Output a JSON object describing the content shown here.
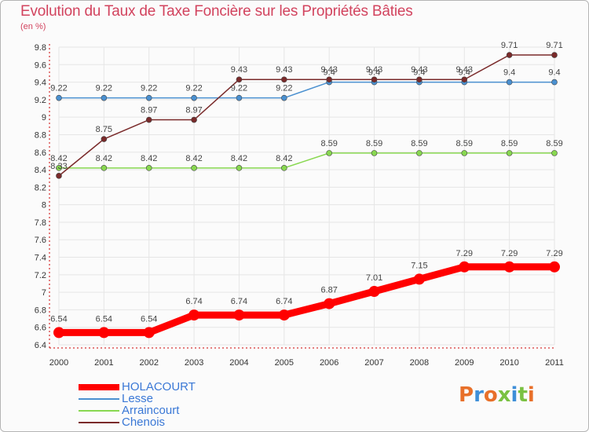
{
  "chart_data": {
    "type": "line",
    "title": "Evolution du Taux de Taxe Foncière sur les Propriétés Bâties",
    "subtitle": "(en %)",
    "xlabel": "",
    "ylabel": "(en %)",
    "ylim": [
      6.4,
      9.8
    ],
    "yticks": [
      6.4,
      6.6,
      6.8,
      7,
      7.2,
      7.4,
      7.6,
      7.8,
      8,
      8.2,
      8.4,
      8.6,
      8.8,
      9,
      9.2,
      9.4,
      9.6,
      9.8
    ],
    "ytick_labels": [
      "6.4",
      "6.6",
      "6.8",
      "7",
      "7.2",
      "7.4",
      "7.6",
      "7.8",
      "8",
      "8.2",
      "8.4",
      "8.6",
      "8.8",
      "9",
      "9.2",
      "9.4",
      "9.6",
      "9.8"
    ],
    "categories": [
      "2000",
      "2001",
      "2002",
      "2003",
      "2004",
      "2005",
      "2006",
      "2007",
      "2008",
      "2009",
      "2010",
      "2011"
    ],
    "grid": true,
    "legend_position": "bottom-left",
    "series": [
      {
        "name": "HOLACOURT",
        "color": "#ff0000",
        "thick": true,
        "values": [
          6.54,
          6.54,
          6.54,
          6.74,
          6.74,
          6.74,
          6.87,
          7.01,
          7.15,
          7.29,
          7.29,
          7.29
        ],
        "labels": [
          "6.54",
          "6.54",
          "6.54",
          "6.74",
          "6.74",
          "6.74",
          "6.87",
          "7.01",
          "7.15",
          "7.29",
          "7.29",
          "7.29"
        ]
      },
      {
        "name": "Lesse",
        "color": "#4a90d0",
        "thick": false,
        "values": [
          9.22,
          9.22,
          9.22,
          9.22,
          9.22,
          9.22,
          9.4,
          9.4,
          9.4,
          9.4,
          9.4,
          9.4
        ],
        "labels": [
          "9.22",
          "9.22",
          "9.22",
          "9.22",
          "9.22",
          "9.22",
          "9.4",
          "9.4",
          "9.4",
          "9.4",
          "9.4",
          "9.4"
        ]
      },
      {
        "name": "Arraincourt",
        "color": "#88d850",
        "thick": false,
        "values": [
          8.42,
          8.42,
          8.42,
          8.42,
          8.42,
          8.42,
          8.59,
          8.59,
          8.59,
          8.59,
          8.59,
          8.59
        ],
        "labels": [
          "8.42",
          "8.42",
          "8.42",
          "8.42",
          "8.42",
          "8.42",
          "8.59",
          "8.59",
          "8.59",
          "8.59",
          "8.59",
          "8.59"
        ]
      },
      {
        "name": "Chenois",
        "color": "#7a2a2a",
        "thick": false,
        "values": [
          8.33,
          8.75,
          8.97,
          8.97,
          9.43,
          9.43,
          9.43,
          9.43,
          9.43,
          9.43,
          9.71,
          9.71
        ],
        "labels": [
          "8.33",
          "8.75",
          "8.97",
          "8.97",
          "9.43",
          "9.43",
          "9.43",
          "9.43",
          "9.43",
          "9.43",
          "9.71",
          "9.71"
        ]
      }
    ]
  },
  "branding": {
    "logo_text": "Proxiti",
    "logo_colors": [
      "#e8702a",
      "#3f8fd8",
      "#e8702a",
      "#7ac142",
      "#3f8fd8",
      "#7ac142",
      "#e8702a"
    ]
  }
}
